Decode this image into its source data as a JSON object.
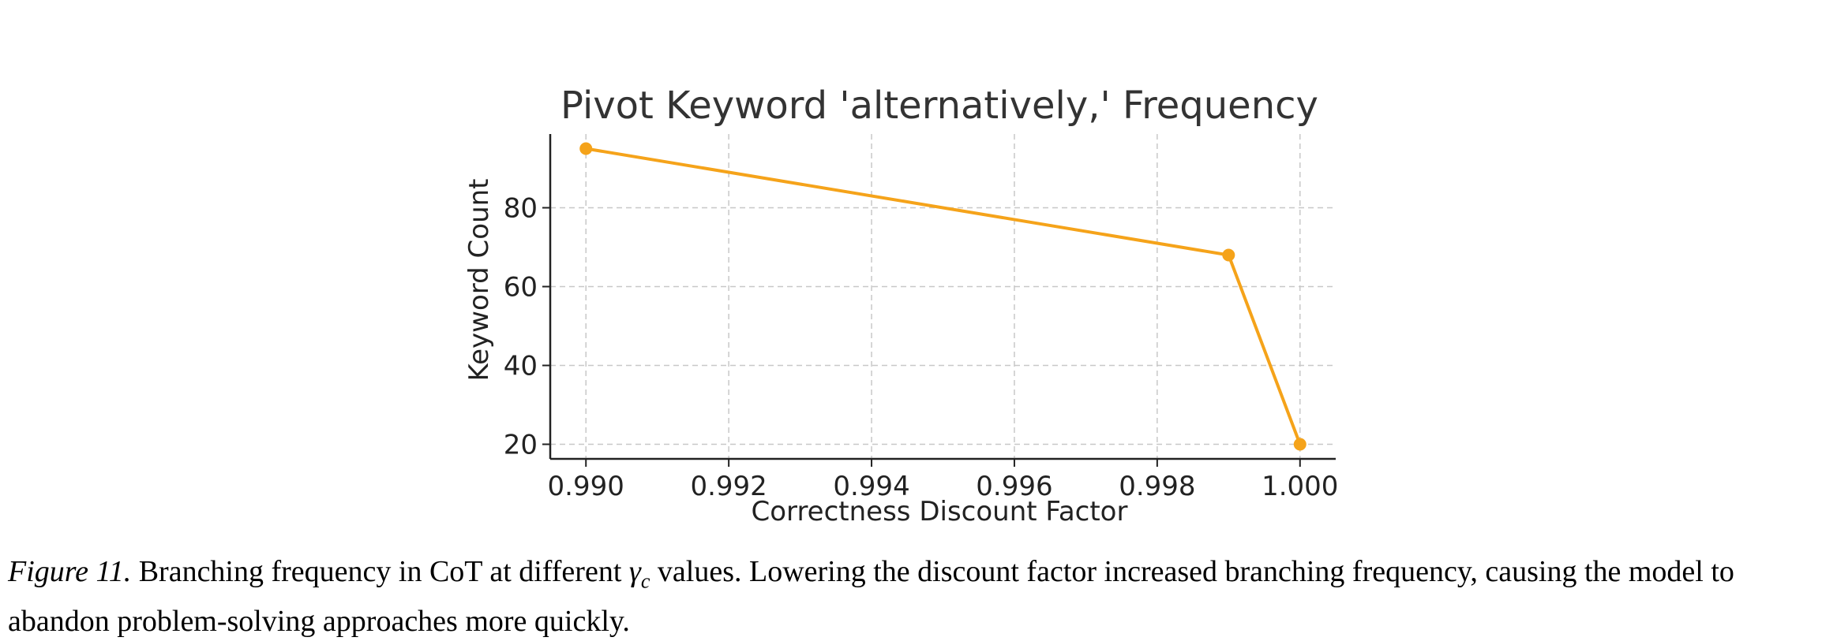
{
  "chart_data": {
    "type": "line",
    "title": "Pivot Keyword 'alternatively,' Frequency",
    "xlabel": "Correctness Discount Factor",
    "ylabel": "Keyword Count",
    "x": [
      0.99,
      0.999,
      1.0
    ],
    "series": [
      {
        "values": [
          95,
          68,
          20
        ],
        "color": "#f5a31a"
      }
    ],
    "xticks": [
      "0.990",
      "0.992",
      "0.994",
      "0.996",
      "0.998",
      "1.000"
    ],
    "xtick_values": [
      0.99,
      0.992,
      0.994,
      0.996,
      0.998,
      1.0
    ],
    "yticks": [
      "20",
      "40",
      "60",
      "80"
    ],
    "ytick_values": [
      20,
      40,
      60,
      80
    ],
    "xlim": [
      0.9895,
      1.0005
    ],
    "ylim": [
      16.3,
      98.7
    ],
    "grid": true
  },
  "caption": {
    "figure_label": "Figure 11.",
    "text_before": " Branching frequency in CoT at different ",
    "gamma_symbol": "γ",
    "gamma_subscript": "c",
    "text_after": " values. Lowering the discount factor increased branching frequency, causing the model to abandon problem-solving approaches more quickly."
  }
}
